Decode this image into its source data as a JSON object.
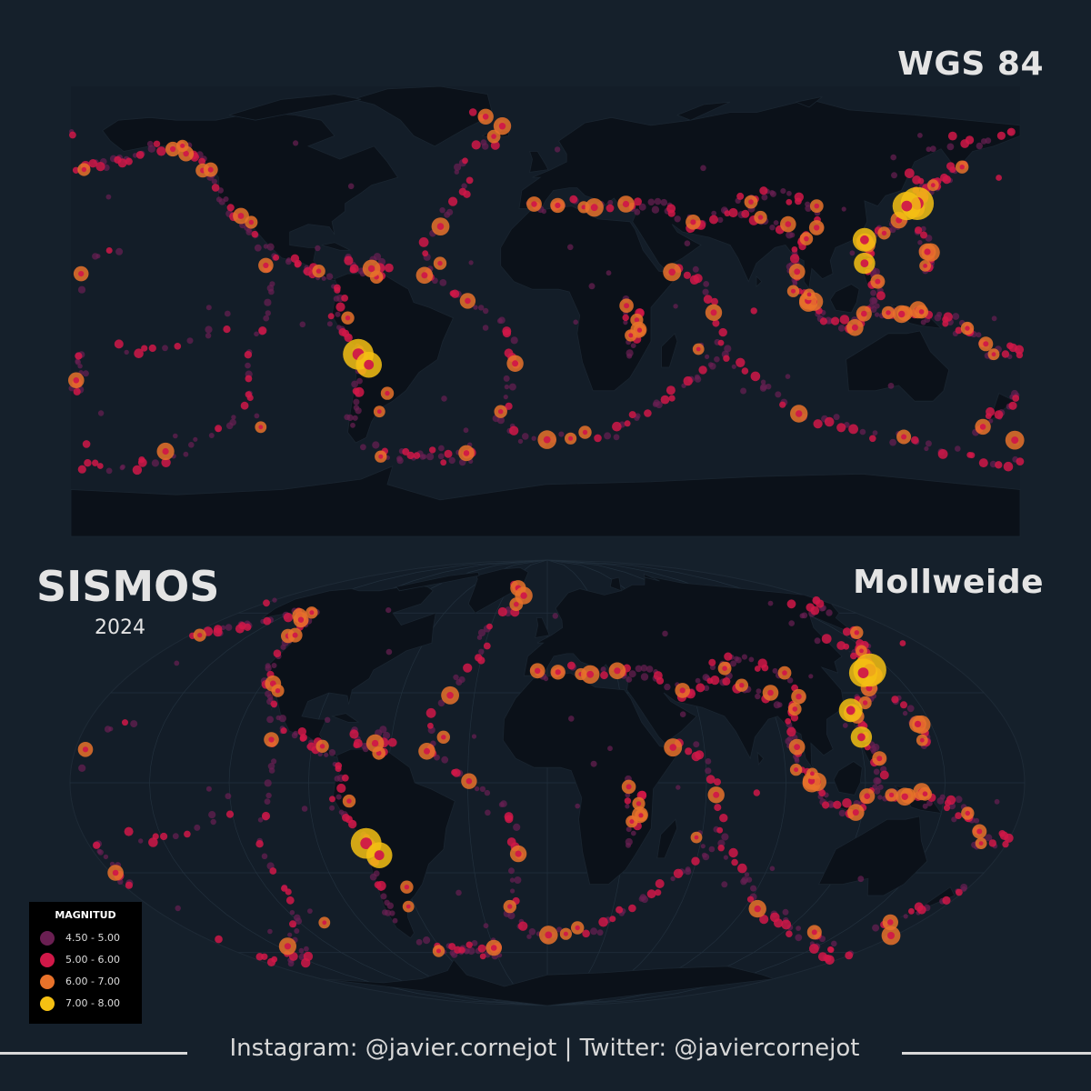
{
  "title": "SISMOS",
  "year": "2024",
  "projections": [
    {
      "name": "WGS 84"
    },
    {
      "name": "Mollweide"
    }
  ],
  "legend": {
    "title": "MAGNITUD",
    "classes": [
      {
        "label": "4.50 - 5.00",
        "color": "#6a1f52"
      },
      {
        "label": "5.00 - 6.00",
        "color": "#d01848"
      },
      {
        "label": "6.00 - 7.00",
        "color": "#e8722a"
      },
      {
        "label": "7.00 - 8.00",
        "color": "#f5c013"
      }
    ]
  },
  "footer": "Instagram: @javier.cornejot | Twitter: @javiercornejot",
  "colors": {
    "background": "#15202b",
    "land": "#0b1119",
    "ocean_frame": "#131d28",
    "text": "#e4e4e4"
  }
}
